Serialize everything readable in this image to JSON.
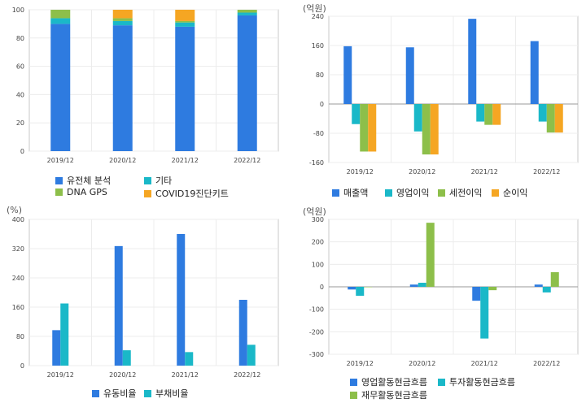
{
  "chart_data": [
    {
      "type": "bar",
      "stacked": true,
      "unit": "",
      "categories": [
        "2019/12",
        "2020/12",
        "2021/12",
        "2022/12"
      ],
      "ylim": [
        0,
        100
      ],
      "yticks": [
        0,
        20,
        40,
        60,
        80,
        100
      ],
      "series": [
        {
          "name": "유전체 분석",
          "color": "#2e7be0",
          "values": [
            90,
            89,
            88,
            96
          ]
        },
        {
          "name": "기타",
          "color": "#1ab8c8",
          "values": [
            4,
            3,
            3,
            2
          ]
        },
        {
          "name": "DNA GPS",
          "color": "#8dbf4a",
          "values": [
            6,
            2,
            1,
            2
          ]
        },
        {
          "name": "COVID19진단키트",
          "color": "#f5a623",
          "values": [
            0,
            6,
            8,
            0
          ]
        }
      ],
      "grid": true,
      "legend": "bottom"
    },
    {
      "type": "bar",
      "unit": "(억원)",
      "categories": [
        "2019/12",
        "2020/12",
        "2021/12",
        "2022/12"
      ],
      "ylim": [
        -160,
        240
      ],
      "yticks": [
        -160,
        -80,
        0,
        80,
        160,
        240
      ],
      "series": [
        {
          "name": "매출액",
          "color": "#2e7be0",
          "values": [
            158,
            155,
            233,
            172
          ]
        },
        {
          "name": "영업이익",
          "color": "#1ab8c8",
          "values": [
            -55,
            -75,
            -48,
            -48
          ]
        },
        {
          "name": "세전이익",
          "color": "#8dbf4a",
          "values": [
            -130,
            -138,
            -57,
            -78
          ]
        },
        {
          "name": "순이익",
          "color": "#f5a623",
          "values": [
            -130,
            -138,
            -57,
            -78
          ]
        }
      ],
      "grid": true,
      "legend": "bottom"
    },
    {
      "type": "bar",
      "unit": "(%)",
      "categories": [
        "2019/12",
        "2020/12",
        "2021/12",
        "2022/12"
      ],
      "ylim": [
        0,
        400
      ],
      "yticks": [
        0,
        80,
        160,
        240,
        320,
        400
      ],
      "series": [
        {
          "name": "유동비율",
          "color": "#2e7be0",
          "values": [
            97,
            327,
            360,
            180
          ]
        },
        {
          "name": "부채비율",
          "color": "#1ab8c8",
          "values": [
            170,
            42,
            37,
            57
          ]
        }
      ],
      "grid": true,
      "legend": "bottom"
    },
    {
      "type": "bar",
      "unit": "(억원)",
      "categories": [
        "2019/12",
        "2020/12",
        "2021/12",
        "2022/12"
      ],
      "ylim": [
        -300,
        300
      ],
      "yticks": [
        -300,
        -200,
        -100,
        0,
        100,
        200,
        300
      ],
      "series": [
        {
          "name": "영업활동현금흐름",
          "color": "#2e7be0",
          "values": [
            -12,
            10,
            -62,
            10
          ]
        },
        {
          "name": "투자활동현금흐름",
          "color": "#1ab8c8",
          "values": [
            -40,
            18,
            -230,
            -25
          ]
        },
        {
          "name": "재무활동현금흐름",
          "color": "#8dbf4a",
          "values": [
            0,
            285,
            -15,
            65
          ]
        }
      ],
      "grid": true,
      "legend": "bottom"
    }
  ]
}
